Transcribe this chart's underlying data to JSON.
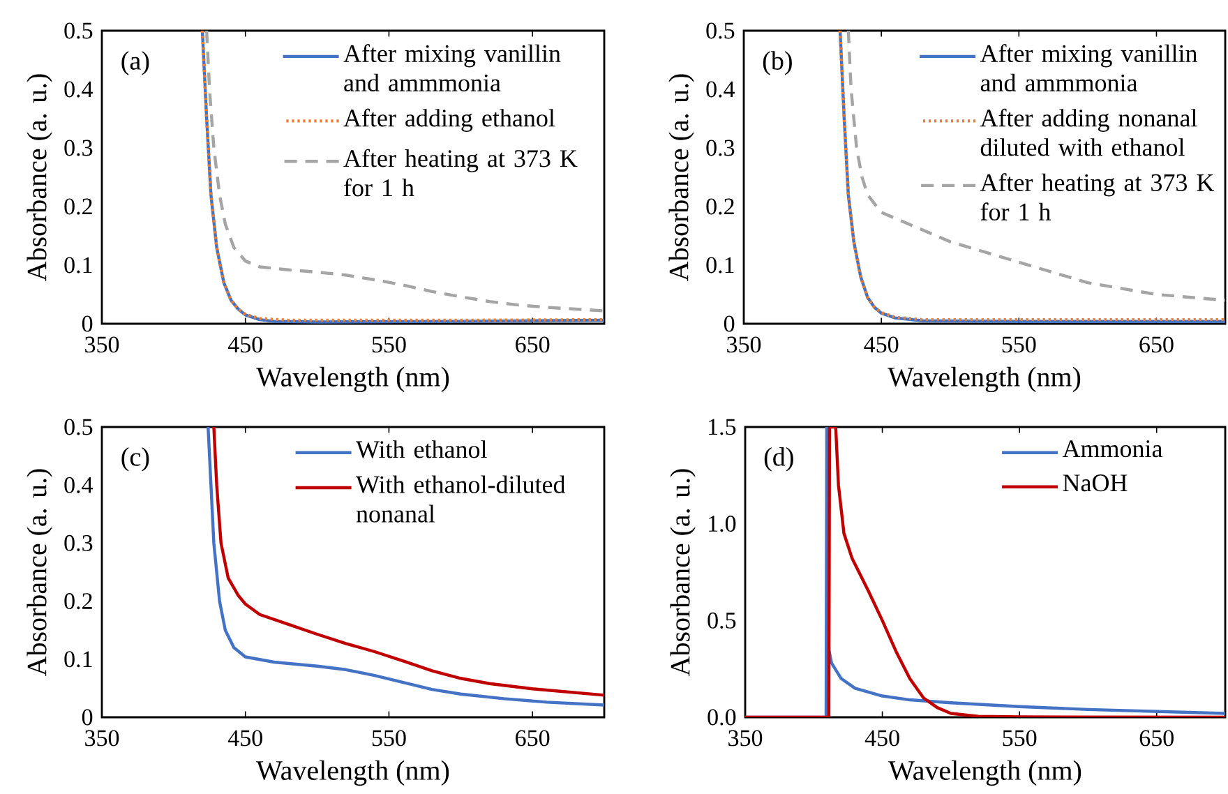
{
  "chart_data": [
    {
      "type": "line",
      "xlabel": "Wavelength (nm)",
      "ylabel": "Absorbance (a. u.)",
      "annotations": [
        "(a)"
      ],
      "legend": "top right",
      "xlim": [
        350,
        700
      ],
      "xticks": [
        350,
        450,
        550,
        650
      ],
      "ylim": [
        0,
        0.5
      ],
      "yticks": [
        0,
        0.1,
        0.2,
        0.3,
        0.4,
        0.5
      ],
      "series": [
        {
          "name": "After mixing vanillin and ammmonia",
          "color": "#4472c4",
          "line_style": "solid",
          "x": [
            420,
            423,
            426,
            430,
            435,
            440,
            445,
            450,
            460,
            470,
            500,
            600,
            700
          ],
          "values": [
            0.5,
            0.35,
            0.22,
            0.13,
            0.07,
            0.04,
            0.025,
            0.015,
            0.007,
            0.004,
            0.003,
            0.004,
            0.006
          ]
        },
        {
          "name": "After adding ethanol",
          "color": "#ed7d31",
          "line_style": "dotted",
          "x": [
            420,
            423,
            426,
            430,
            435,
            440,
            445,
            450,
            460,
            480,
            600,
            700
          ],
          "values": [
            0.5,
            0.35,
            0.22,
            0.13,
            0.07,
            0.04,
            0.025,
            0.016,
            0.009,
            0.006,
            0.006,
            0.007
          ]
        },
        {
          "name": "After heating at 373 K for 1 h",
          "color": "#a5a5a5",
          "line_style": "dashed",
          "x": [
            423,
            425,
            428,
            432,
            436,
            442,
            450,
            460,
            480,
            500,
            520,
            540,
            560,
            580,
            600,
            620,
            640,
            660,
            680,
            700
          ],
          "values": [
            0.5,
            0.4,
            0.3,
            0.22,
            0.17,
            0.13,
            0.107,
            0.097,
            0.092,
            0.088,
            0.083,
            0.075,
            0.066,
            0.055,
            0.046,
            0.038,
            0.032,
            0.028,
            0.025,
            0.022
          ]
        }
      ]
    },
    {
      "type": "line",
      "xlabel": "Wavelength (nm)",
      "ylabel": "Absorbance (a. u.)",
      "annotations": [
        "(b)"
      ],
      "legend": "top right",
      "xlim": [
        350,
        700
      ],
      "xticks": [
        350,
        450,
        550,
        650
      ],
      "ylim": [
        0,
        0.5
      ],
      "yticks": [
        0,
        0.1,
        0.2,
        0.3,
        0.4,
        0.5
      ],
      "series": [
        {
          "name": "After mixing vanillin and ammmonia",
          "color": "#4472c4",
          "line_style": "solid",
          "x": [
            420,
            423,
            426,
            430,
            435,
            440,
            445,
            450,
            460,
            480,
            550,
            700
          ],
          "values": [
            0.5,
            0.35,
            0.22,
            0.14,
            0.08,
            0.045,
            0.028,
            0.018,
            0.01,
            0.005,
            0.004,
            0.004
          ]
        },
        {
          "name": "After adding nonanal diluted with ethanol",
          "color": "#ed7d31",
          "line_style": "dotted",
          "x": [
            420,
            423,
            426,
            430,
            435,
            440,
            445,
            450,
            460,
            480,
            700
          ],
          "values": [
            0.5,
            0.35,
            0.22,
            0.14,
            0.08,
            0.045,
            0.028,
            0.019,
            0.011,
            0.007,
            0.007
          ]
        },
        {
          "name": "After heating at 373 K for 1 h",
          "color": "#a5a5a5",
          "line_style": "dashed",
          "x": [
            426,
            428,
            432,
            436,
            440,
            450,
            470,
            500,
            550,
            600,
            650,
            700
          ],
          "values": [
            0.5,
            0.4,
            0.3,
            0.25,
            0.22,
            0.19,
            0.17,
            0.14,
            0.105,
            0.07,
            0.05,
            0.04
          ]
        }
      ]
    },
    {
      "type": "line",
      "xlabel": "Wavelength (nm)",
      "ylabel": "Absorbance (a. u.)",
      "annotations": [
        "(c)"
      ],
      "legend": "top right",
      "xlim": [
        350,
        700
      ],
      "xticks": [
        350,
        450,
        550,
        650
      ],
      "ylim": [
        0,
        0.5
      ],
      "yticks": [
        0,
        0.1,
        0.2,
        0.3,
        0.4,
        0.5
      ],
      "series": [
        {
          "name": "With ethanol",
          "color": "#4472c4",
          "line_style": "solid",
          "x": [
            424,
            426,
            428,
            432,
            436,
            442,
            450,
            470,
            500,
            520,
            540,
            560,
            580,
            600,
            630,
            660,
            700
          ],
          "values": [
            0.5,
            0.4,
            0.3,
            0.2,
            0.15,
            0.12,
            0.104,
            0.095,
            0.088,
            0.082,
            0.072,
            0.06,
            0.048,
            0.04,
            0.032,
            0.026,
            0.021
          ]
        },
        {
          "name": "With ethanol-diluted nonanal",
          "color": "#c00000",
          "line_style": "solid",
          "x": [
            428,
            430,
            433,
            438,
            445,
            450,
            460,
            480,
            500,
            520,
            540,
            560,
            580,
            600,
            620,
            650,
            700
          ],
          "values": [
            0.5,
            0.4,
            0.3,
            0.24,
            0.21,
            0.195,
            0.177,
            0.16,
            0.143,
            0.127,
            0.113,
            0.097,
            0.08,
            0.067,
            0.058,
            0.049,
            0.038
          ]
        }
      ]
    },
    {
      "type": "line",
      "xlabel": "Wavelength (nm)",
      "ylabel": "Absorbance (a. u.)",
      "annotations": [
        "(d)"
      ],
      "legend": "top right",
      "xlim": [
        350,
        700
      ],
      "xticks": [
        350,
        450,
        550,
        650
      ],
      "ylim": [
        0,
        1.5
      ],
      "yticks": [
        {
          "value": 0,
          "label": "0.0"
        },
        0.5,
        {
          "value": 1,
          "label": "1.0"
        },
        1.5
      ],
      "series": [
        {
          "name": "Ammonia",
          "color": "#4472c4",
          "line_style": "solid",
          "x": [
            350,
            409,
            409.5,
            410,
            411,
            413,
            420,
            430,
            450,
            470,
            500,
            550,
            600,
            650,
            700
          ],
          "values": [
            0,
            0,
            1.5,
            0.7,
            0.35,
            0.28,
            0.2,
            0.15,
            0.11,
            0.09,
            0.075,
            0.055,
            0.04,
            0.03,
            0.02
          ]
        },
        {
          "name": "NaOH",
          "color": "#c00000",
          "line_style": "solid",
          "x": [
            350,
            411,
            411.5,
            416,
            418,
            422,
            428,
            440,
            450,
            460,
            470,
            480,
            490,
            500,
            520,
            550,
            700
          ],
          "values": [
            0,
            0,
            1.5,
            1.5,
            1.2,
            0.95,
            0.82,
            0.65,
            0.5,
            0.34,
            0.2,
            0.1,
            0.05,
            0.02,
            0.005,
            0.002,
            0
          ]
        }
      ]
    }
  ]
}
